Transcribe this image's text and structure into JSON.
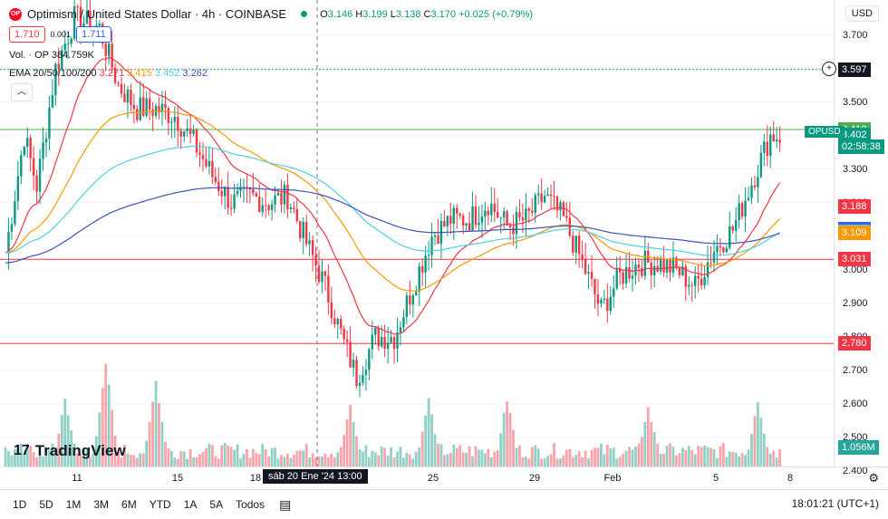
{
  "header": {
    "logo_text": "OP",
    "title": "Optimism / United States Dollar · 4h · COINBASE",
    "ohlc_o_label": "O",
    "ohlc_o": "3.146",
    "ohlc_h_label": "H",
    "ohlc_h": "3.199",
    "ohlc_l_label": "L",
    "ohlc_l": "3.138",
    "ohlc_c_label": "C",
    "ohlc_c": "3.170",
    "change": "+0.025 (+0.79%)",
    "sell_price": "1.710",
    "spread": "0.001",
    "buy_price": "1.711",
    "volume_legend": "Vol. · OP  384.759K",
    "ema_legend_label": "EMA 20/50/100/200",
    "ema20": "3.271",
    "ema50": "3.415",
    "ema100": "3.452",
    "ema200": "3.262",
    "currency": "USD"
  },
  "price_axis": {
    "ticks": [
      "3.700",
      "3.600",
      "3.500",
      "3.400",
      "3.300",
      "3.200",
      "3.100",
      "3.000",
      "2.900",
      "2.800",
      "2.700",
      "2.600",
      "2.500",
      "2.400"
    ],
    "labels": [
      {
        "text": "3.597",
        "color": "#131722"
      },
      {
        "text": "3.418",
        "color": "#4caf50"
      },
      {
        "text": "3.402",
        "color": "#089981"
      },
      {
        "text": "02:58:38",
        "color": "#089981"
      },
      {
        "text": "3.188",
        "color": "#f23645"
      },
      {
        "text": "3.122",
        "color": "#2962ff"
      },
      {
        "text": "3.112",
        "color": "#4dd0e1"
      },
      {
        "text": "3.109",
        "color": "#ff9800"
      },
      {
        "text": "3.031",
        "color": "#f23645"
      },
      {
        "text": "2.780",
        "color": "#f23645"
      },
      {
        "text": "1.056M",
        "color": "#26a69a"
      }
    ],
    "symbol_tag": "OPUSD"
  },
  "time_axis": {
    "labels": [
      "11",
      "15",
      "18",
      "25",
      "29",
      "Feb",
      "5",
      "8"
    ],
    "crosshair": "sáb 20 Ene '24   13:00"
  },
  "bottom_bar": {
    "ranges": [
      "1D",
      "5D",
      "1M",
      "3M",
      "6M",
      "YTD",
      "1A",
      "5A",
      "Todos"
    ],
    "clock": "18:01:21 (UTC+1)"
  },
  "branding": "TradingView",
  "colors": {
    "up": "#089981",
    "down": "#f23645",
    "ema20": "#f23645",
    "ema50": "#ff9800",
    "ema100": "#4dd0e1",
    "ema200": "#3f51b5"
  },
  "chart_data": {
    "type": "candlestick",
    "title": "Optimism / United States Dollar · 4h · COINBASE",
    "ylim": [
      2.4,
      3.75
    ],
    "x_labels": [
      "11",
      "15",
      "18",
      "25",
      "29",
      "Feb",
      "5",
      "8"
    ],
    "horizontal_lines": [
      3.597,
      3.418,
      3.031,
      2.78
    ],
    "price_keypoints": [
      [
        0,
        3.05
      ],
      [
        6,
        3.4
      ],
      [
        10,
        3.25
      ],
      [
        16,
        3.6
      ],
      [
        22,
        3.75
      ],
      [
        30,
        3.72
      ],
      [
        36,
        3.55
      ],
      [
        42,
        3.48
      ],
      [
        48,
        3.48
      ],
      [
        54,
        3.46
      ],
      [
        60,
        3.38
      ],
      [
        66,
        3.28
      ],
      [
        72,
        3.2
      ],
      [
        78,
        3.22
      ],
      [
        84,
        3.2
      ],
      [
        90,
        3.22
      ],
      [
        96,
        3.08
      ],
      [
        102,
        2.95
      ],
      [
        108,
        2.78
      ],
      [
        112,
        2.68
      ],
      [
        118,
        2.8
      ],
      [
        124,
        2.8
      ],
      [
        130,
        2.95
      ],
      [
        136,
        3.1
      ],
      [
        142,
        3.15
      ],
      [
        148,
        3.15
      ],
      [
        154,
        3.2
      ],
      [
        160,
        3.13
      ],
      [
        166,
        3.15
      ],
      [
        172,
        3.22
      ],
      [
        178,
        3.15
      ],
      [
        184,
        3.02
      ],
      [
        190,
        2.88
      ],
      [
        196,
        2.98
      ],
      [
        202,
        3.02
      ],
      [
        208,
        3.02
      ],
      [
        214,
        3.0
      ],
      [
        220,
        2.95
      ],
      [
        226,
        3.06
      ],
      [
        232,
        3.12
      ],
      [
        238,
        3.26
      ],
      [
        244,
        3.4
      ]
    ],
    "ema_start": {
      "ema20": 3.05,
      "ema50": 3.05,
      "ema100": 3.05,
      "ema200": 3.02
    },
    "volume": {
      "last": "1.056M",
      "peaks": [
        [
          19,
          1.0
        ],
        [
          32,
          1.6
        ],
        [
          48,
          1.3
        ],
        [
          110,
          0.9
        ],
        [
          135,
          1.0
        ],
        [
          160,
          1.0
        ],
        [
          205,
          0.9
        ],
        [
          240,
          1.0
        ]
      ]
    }
  }
}
